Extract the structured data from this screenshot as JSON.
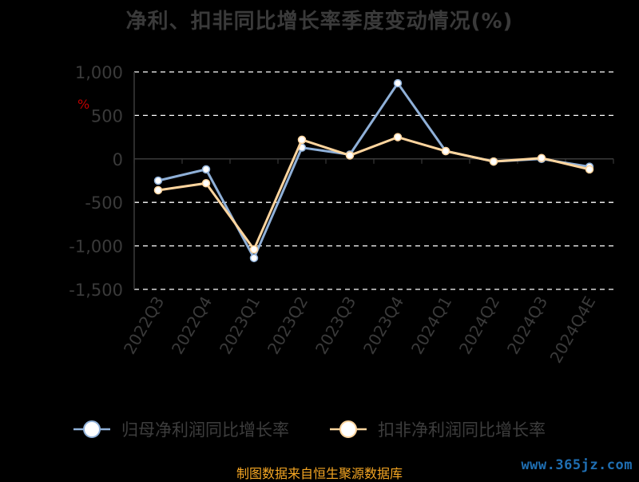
{
  "title": "净利、扣非同比增长率季度变动情况(%)",
  "unit_label": "%",
  "source": "制图数据来自恒生聚源数据库",
  "watermark": "www.365jz.com",
  "colors": {
    "series0": "#8fb0d8",
    "series1": "#ffd59e",
    "grid": "#ffffff",
    "axis": "#3a3a3a"
  },
  "chart_data": {
    "type": "line",
    "categories": [
      "2022Q3",
      "2022Q4",
      "2023Q1",
      "2023Q2",
      "2023Q3",
      "2023Q4",
      "2024Q1",
      "2024Q2",
      "2024Q3",
      "2024Q4E"
    ],
    "series": [
      {
        "name": "归母净利润同比增长率",
        "values": [
          -250,
          -120,
          -1140,
          130,
          50,
          870,
          90,
          -30,
          0,
          -90
        ]
      },
      {
        "name": "扣非净利润同比增长率",
        "values": [
          -360,
          -280,
          -1040,
          220,
          40,
          250,
          90,
          -30,
          10,
          -120
        ]
      }
    ],
    "ylim": [
      -1500,
      1000
    ],
    "yticks": [
      1000,
      500,
      0,
      -500,
      -1000,
      -1500
    ],
    "ytick_labels": [
      "1,000",
      "500",
      "0",
      "-500",
      "-1,000",
      "-1,500"
    ],
    "grid": true,
    "legend_position": "bottom"
  }
}
